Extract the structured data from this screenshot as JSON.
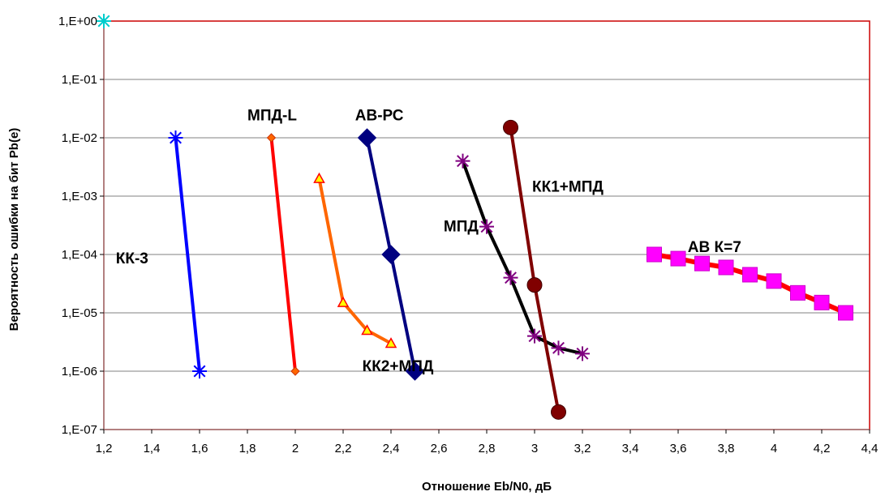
{
  "chart_data": {
    "type": "line",
    "title": "",
    "xlabel": "Отношение Eb/N0,  дБ",
    "ylabel": "Вероятность ошибки на бит Pb(e)",
    "xlim": [
      1.2,
      4.4
    ],
    "xticks": [
      1.2,
      1.4,
      1.6,
      1.8,
      2.0,
      2.2,
      2.4,
      2.6,
      2.8,
      3.0,
      3.2,
      3.4,
      3.6,
      3.8,
      4.0,
      4.2,
      4.4
    ],
    "xtick_labels": [
      "1,2",
      "1,4",
      "1,6",
      "1,8",
      "2",
      "2,2",
      "2,4",
      "2,6",
      "2,8",
      "3",
      "3,2",
      "3,4",
      "3,6",
      "3,8",
      "4",
      "4,2",
      "4,4"
    ],
    "y_scale": "log",
    "ylim": [
      1e-07,
      1
    ],
    "yticks": [
      1,
      0.1,
      0.01,
      0.001,
      0.0001,
      1e-05,
      1e-06,
      1e-07
    ],
    "ytick_labels": [
      "1,E+00",
      "1,E-01",
      "1,E-02",
      "1,E-03",
      "1,E-04",
      "1,E-05",
      "1,E-06",
      "1,E-07"
    ],
    "grid": "horizontal",
    "plot_area_border_color": "#cc0000",
    "series": [
      {
        "name": "КК-3",
        "color": "#0000ff",
        "marker": "asterisk",
        "marker_color": "#0000ff",
        "x": [
          1.5,
          1.6
        ],
        "y": [
          0.01,
          1e-06
        ]
      },
      {
        "name": "МПД-L",
        "color": "#ff0000",
        "marker": "diamond",
        "marker_color": "#ff6600",
        "x": [
          1.9,
          2.0
        ],
        "y": [
          0.01,
          1e-06
        ]
      },
      {
        "name": "КК2+МПД",
        "color": "#ff6600",
        "marker": "triangle",
        "marker_color": "#ffff00",
        "x": [
          2.1,
          2.2,
          2.3,
          2.4
        ],
        "y": [
          0.002,
          1.5e-05,
          5e-06,
          3e-06
        ]
      },
      {
        "name": "АВ-РС",
        "color": "#000080",
        "marker": "diamond",
        "marker_color": "#000080",
        "x": [
          2.3,
          2.4,
          2.5
        ],
        "y": [
          0.01,
          0.0001,
          1e-06
        ]
      },
      {
        "name": "МПД",
        "color": "#000000",
        "marker": "asterisk",
        "marker_color": "#800080",
        "x": [
          2.7,
          2.8,
          2.9,
          3.0,
          3.1,
          3.2
        ],
        "y": [
          0.004,
          0.0003,
          4e-05,
          4e-06,
          2.5e-06,
          2e-06
        ]
      },
      {
        "name": "КК1+МПД",
        "color": "#800000",
        "marker": "circle",
        "marker_color": "#800000",
        "x": [
          2.9,
          3.0,
          3.1
        ],
        "y": [
          0.015,
          3e-05,
          2e-07
        ]
      },
      {
        "name": "АВ К=7",
        "color": "#ff0000",
        "marker": "square",
        "marker_color": "#ff00ff",
        "x": [
          3.5,
          3.6,
          3.7,
          3.8,
          3.9,
          4.0,
          4.1,
          4.2,
          4.3
        ],
        "y": [
          0.0001,
          8.5e-05,
          7e-05,
          6e-05,
          4.5e-05,
          3.5e-05,
          2.2e-05,
          1.5e-05,
          1e-05
        ]
      }
    ],
    "corner_marker": {
      "x": 1.2,
      "y": 1,
      "marker": "asterisk",
      "color": "#00cccc"
    },
    "annotations": [
      {
        "text": "КК-3",
        "x": 1.25,
        "y": 7e-05
      },
      {
        "text": "МПД-L",
        "x": 1.8,
        "y": 0.02
      },
      {
        "text": "АВ-РС",
        "x": 2.25,
        "y": 0.02
      },
      {
        "text": "КК2+МПД",
        "x": 2.28,
        "y": 1e-06
      },
      {
        "text": "КК1+МПД",
        "x": 2.99,
        "y": 0.0012
      },
      {
        "text": "МПД",
        "x": 2.62,
        "y": 0.00025
      },
      {
        "text": "АВ К=7",
        "x": 3.64,
        "y": 0.00011
      }
    ]
  }
}
